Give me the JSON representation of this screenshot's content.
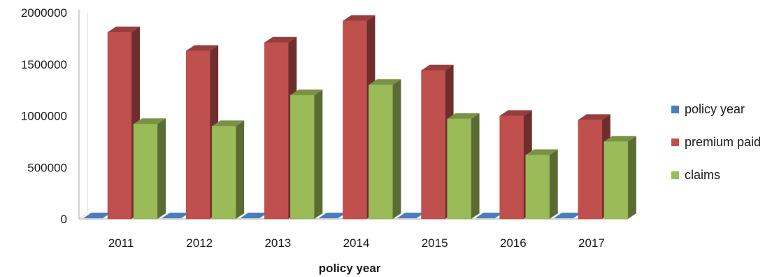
{
  "chart_data": {
    "type": "bar",
    "subtype": "3d-clustered-column",
    "title": "",
    "xlabel": "policy year",
    "ylabel": "",
    "categories": [
      "2011",
      "2012",
      "2013",
      "2014",
      "2015",
      "2016",
      "2017"
    ],
    "ylim": [
      0,
      2000000
    ],
    "yticks": [
      0,
      500000,
      1000000,
      1500000,
      2000000
    ],
    "series": [
      {
        "name": "policy year",
        "values": [
          2011,
          2012,
          2013,
          2014,
          2015,
          2016,
          2017
        ],
        "color": "#4a7ebb"
      },
      {
        "name": "premium paid",
        "values": [
          1810000,
          1630000,
          1710000,
          1920000,
          1440000,
          1000000,
          960000
        ],
        "color": "#c0504d"
      },
      {
        "name": "claims",
        "values": [
          920000,
          900000,
          1200000,
          1300000,
          970000,
          620000,
          750000
        ],
        "color": "#9bbb59"
      }
    ],
    "legend_position": "right",
    "grid": false
  }
}
